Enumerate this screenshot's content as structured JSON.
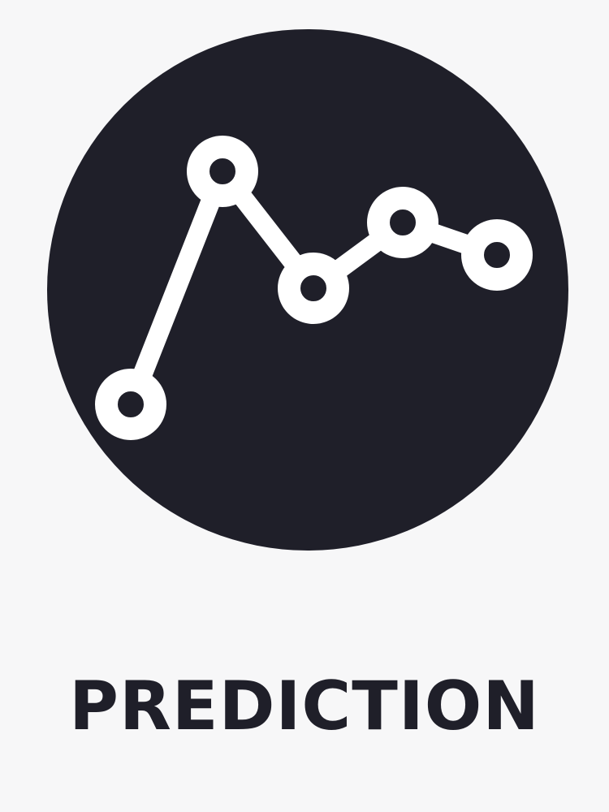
{
  "emblem": {
    "icon": "line-chart-icon",
    "circle_color": "#1f1f29",
    "mark_color": "#ffffff",
    "node_count": 5
  },
  "caption": {
    "text": "PREDICTION",
    "color": "#1f1f29"
  },
  "background_color": "#f7f7f8"
}
